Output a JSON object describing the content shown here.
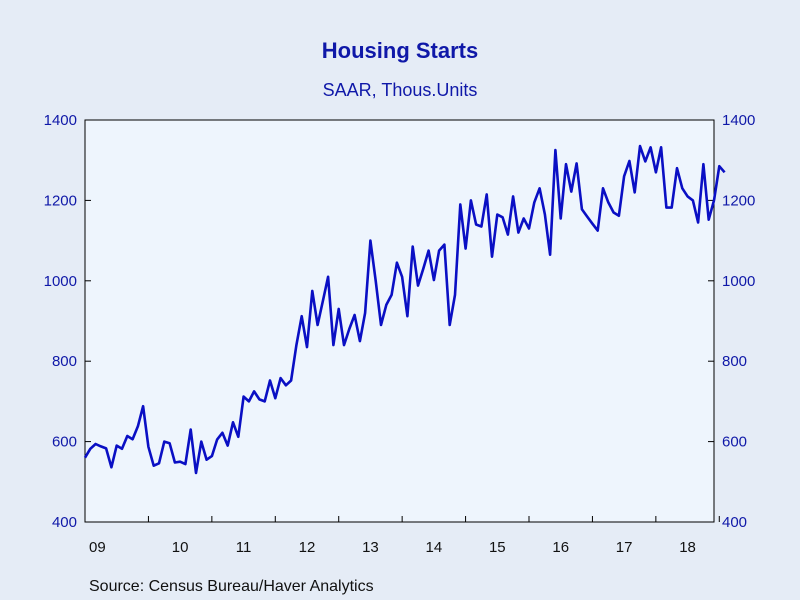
{
  "chart_data": {
    "type": "line",
    "title": "Housing Starts",
    "subtitle": "SAAR, Thous.Units",
    "source": "Source:  Census Bureau/Haver Analytics",
    "ylim": [
      400,
      1400
    ],
    "yticks": [
      400,
      600,
      800,
      1000,
      1200,
      1400
    ],
    "ytick_labels": [
      "400",
      "600",
      "800",
      "1000",
      "1200",
      "1400"
    ],
    "xtick_labels": [
      "09",
      "10",
      "11",
      "12",
      "13",
      "14",
      "15",
      "16",
      "17",
      "18"
    ],
    "x_start": "2009-01",
    "x_end": "2018-12",
    "grid": false,
    "colors": {
      "line": "#0a0fc4",
      "plot_bg": "#eef5fd",
      "page_bg": "#e5ecf6",
      "text": "#0f18a8"
    },
    "series": [
      {
        "values": [
          560,
          582,
          594,
          588,
          583,
          536,
          590,
          582,
          614,
          606,
          638,
          688,
          587,
          540,
          546,
          600,
          596,
          548,
          550,
          544,
          630,
          522,
          600,
          555,
          564,
          605,
          622,
          590,
          648,
          612,
          712,
          700,
          725,
          705,
          700,
          752,
          708,
          758,
          740,
          752,
          840,
          912,
          835,
          975,
          890,
          950,
          1010,
          840,
          930,
          840,
          880,
          915,
          850,
          920,
          1100,
          1000,
          890,
          940,
          965,
          1045,
          1010,
          912,
          1085,
          988,
          1030,
          1075,
          1002,
          1075,
          1090,
          890,
          965,
          1190,
          1080,
          1200,
          1140,
          1135,
          1215,
          1060,
          1165,
          1158,
          1115,
          1210,
          1120,
          1155,
          1130,
          1195,
          1230,
          1165,
          1065,
          1325,
          1155,
          1290,
          1222,
          1292,
          1178,
          1160,
          1142,
          1125,
          1230,
          1195,
          1170,
          1162,
          1260,
          1298,
          1220,
          1335,
          1297,
          1332,
          1270,
          1332,
          1182,
          1182,
          1280,
          1230,
          1210,
          1200,
          1145,
          1290,
          1152,
          1200
        ]
      },
      {
        "values": [
          1285,
          1270
        ]
      }
    ]
  }
}
